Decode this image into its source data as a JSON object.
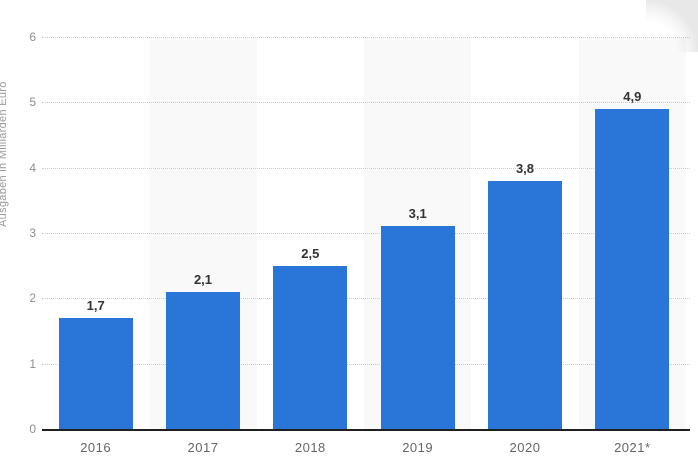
{
  "chart_data": {
    "type": "bar",
    "categories": [
      "2016",
      "2017",
      "2018",
      "2019",
      "2020",
      "2021*"
    ],
    "values": [
      1.7,
      2.1,
      2.5,
      3.1,
      3.8,
      4.9
    ],
    "value_labels": [
      "1,7",
      "2,1",
      "2,5",
      "3,1",
      "3,8",
      "4,9"
    ],
    "title": "",
    "xlabel": "",
    "ylabel": "Ausgaben in Milliarden Euro",
    "ylim": [
      0,
      6
    ],
    "yticks": [
      "0",
      "1",
      "2",
      "3",
      "4",
      "5",
      "6"
    ],
    "grid": "horizontal-dotted",
    "legend": "none",
    "alternating_column_bands": [
      false,
      true,
      false,
      true,
      false,
      true
    ]
  },
  "colors": {
    "bar": "#2a76d8",
    "band": "#f9f9f9",
    "gridline": "#cccccc",
    "axis_line": "#1f1f1f",
    "value_label": "#333333",
    "x_label": "#666666",
    "y_tick": "#8f8f8f",
    "y_title": "#9a9a9a",
    "background": "#ffffff"
  }
}
